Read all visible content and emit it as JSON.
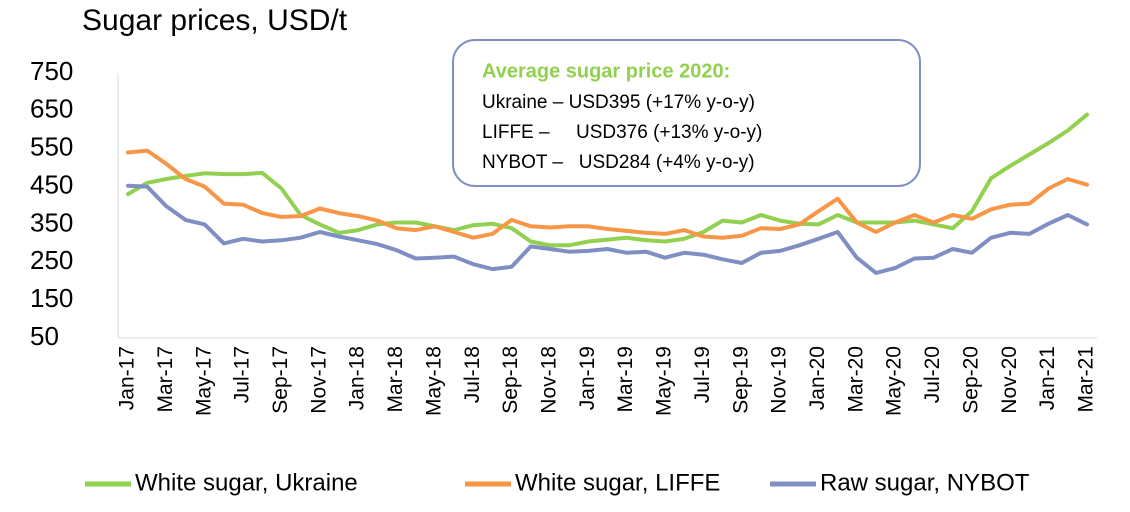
{
  "chart_data": {
    "type": "line",
    "title": "Sugar prices, USD/t",
    "annotations": [
      "Average sugar price 2020:",
      "Ukraine – USD395 (+17% y-o-y)",
      "LIFFE –     USD376 (+13% y-o-y)",
      "NYBOT –   USD284 (+4% y-o-y)"
    ],
    "annotation_color": "#92d050",
    "categories": [
      "Jan-17",
      null,
      "Mar-17",
      null,
      "May-17",
      null,
      "Jul-17",
      null,
      "Sep-17",
      null,
      "Nov-17",
      null,
      "Jan-18",
      null,
      "Mar-18",
      null,
      "May-18",
      null,
      "Jul-18",
      null,
      "Sep-18",
      null,
      "Nov-18",
      null,
      "Jan-19",
      null,
      "Mar-19",
      null,
      "May-19",
      null,
      "Jul-19",
      null,
      "Sep-19",
      null,
      "Nov-19",
      null,
      "Jan-20",
      null,
      "Mar-20",
      null,
      "May-20",
      null,
      "Jul-20",
      null,
      "Sep-20",
      null,
      "Nov-20",
      null,
      "Jan-21",
      null,
      "Mar-21"
    ],
    "series": [
      {
        "name": "White sugar, Ukraine",
        "color": "#92d050",
        "values": [
          430,
          460,
          470,
          478,
          485,
          483,
          483,
          486,
          445,
          375,
          350,
          328,
          335,
          350,
          355,
          355,
          345,
          335,
          348,
          352,
          340,
          305,
          295,
          295,
          305,
          310,
          315,
          308,
          305,
          312,
          330,
          360,
          355,
          375,
          360,
          352,
          350,
          375,
          355,
          355,
          355,
          360,
          350,
          340,
          385,
          472,
          505,
          535,
          565,
          598,
          640
        ]
      },
      {
        "name": "White sugar, LIFFE",
        "color": "#f79646",
        "values": [
          540,
          545,
          510,
          470,
          450,
          405,
          402,
          380,
          370,
          372,
          392,
          380,
          372,
          360,
          340,
          335,
          345,
          330,
          315,
          325,
          362,
          345,
          342,
          345,
          345,
          338,
          333,
          328,
          325,
          335,
          318,
          315,
          320,
          340,
          338,
          350,
          385,
          418,
          355,
          330,
          355,
          375,
          355,
          375,
          365,
          390,
          402,
          405,
          445,
          470,
          455
        ]
      },
      {
        "name": "Raw sugar, NYBOT",
        "color": "#7f8fc4",
        "values": [
          452,
          450,
          398,
          362,
          350,
          300,
          312,
          305,
          308,
          315,
          330,
          318,
          308,
          298,
          282,
          260,
          262,
          265,
          245,
          232,
          238,
          292,
          285,
          278,
          280,
          285,
          275,
          278,
          262,
          275,
          270,
          258,
          248,
          275,
          280,
          295,
          312,
          330,
          262,
          222,
          235,
          260,
          262,
          285,
          275,
          315,
          328,
          325,
          352,
          375,
          350
        ]
      }
    ],
    "ylim": [
      50,
      750
    ],
    "yticks": [
      50,
      150,
      250,
      350,
      450,
      550,
      650,
      750
    ],
    "grid": false
  }
}
